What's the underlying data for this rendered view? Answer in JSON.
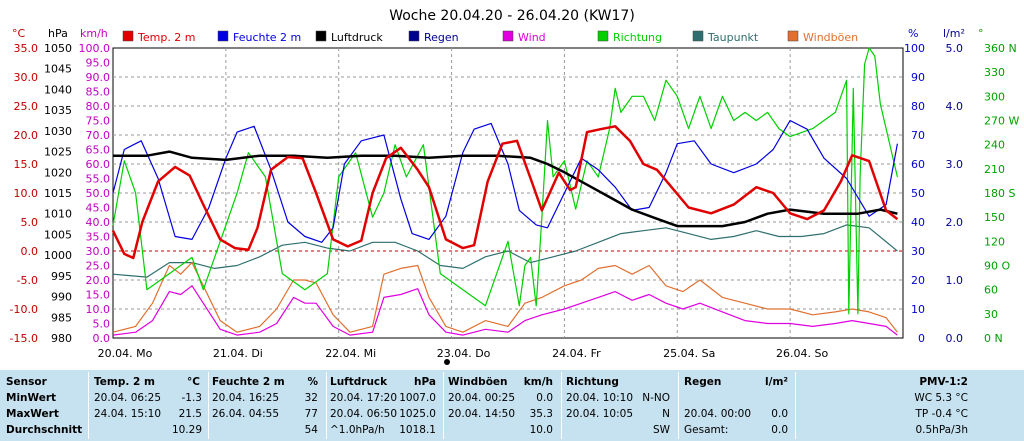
{
  "chart_data": {
    "type": "line",
    "title": "Woche 20.04.20 - 26.04.20 (KW17)",
    "legend": [
      {
        "name": "Temp. 2 m",
        "color": "#e00000"
      },
      {
        "name": "Feuchte  2 m",
        "color": "#0000e0"
      },
      {
        "name": "Luftdruck",
        "color": "#000000"
      },
      {
        "name": "Regen",
        "color": "#000090"
      },
      {
        "name": "Wind",
        "color": "#e000e0"
      },
      {
        "name": "Richtung",
        "color": "#00d000"
      },
      {
        "name": "Taupunkt",
        "color": "#2f6f6f"
      },
      {
        "name": "Windböen",
        "color": "#e07030"
      }
    ],
    "legend_position": "top",
    "grid": true,
    "x_labels": [
      "20.04.  Mo",
      "21.04.  Di",
      "22.04.  Mi",
      "23.04.  Do",
      "24.04.  Fr",
      "25.04.  Sa",
      "26.04.  So"
    ],
    "x_unit": "days since 20.04. 00:00",
    "xlim": [
      0,
      7
    ],
    "axes": {
      "temp": {
        "unit": "°C",
        "ticks": [
          "35.0",
          "30.0",
          "25.0",
          "20.0",
          "15.0",
          "10.0",
          "5.0",
          "0.0",
          "-5.0",
          "-10.0",
          "-15.0"
        ],
        "ylim": [
          -15,
          35
        ]
      },
      "pressure": {
        "unit": "hPa",
        "ticks": [
          "1050",
          "1045",
          "1040",
          "1035",
          "1030",
          "1025",
          "1020",
          "1015",
          "1010",
          "1005",
          "1000",
          "995",
          "990",
          "985",
          "980"
        ],
        "ylim": [
          980,
          1050
        ]
      },
      "wind": {
        "unit": "km/h",
        "ticks": [
          "100.0",
          "95.0",
          "90.0",
          "85.0",
          "80.0",
          "75.0",
          "70.0",
          "65.0",
          "60.0",
          "55.0",
          "50.0",
          "45.0",
          "40.0",
          "35.0",
          "30.0",
          "25.0",
          "20.0",
          "15.0",
          "10.0",
          "5.0",
          "0.0"
        ],
        "ylim": [
          0,
          100
        ]
      },
      "humidity": {
        "unit": "%",
        "ticks": [
          "100",
          "90",
          "80",
          "70",
          "60",
          "50",
          "40",
          "30",
          "20",
          "10",
          "0"
        ],
        "ylim": [
          0,
          100
        ]
      },
      "rain": {
        "unit": "l/m²",
        "ticks": [
          "5.0",
          "4.0",
          "3.0",
          "2.0",
          "1.0",
          "0.0"
        ],
        "ylim": [
          0,
          5
        ]
      },
      "direction": {
        "unit": "°",
        "ticks": [
          "360 N",
          "330",
          "300",
          "270 W",
          "240",
          "210",
          "180 S",
          "150",
          "120",
          "90 O",
          "60",
          "30",
          "0 N"
        ],
        "ylim": [
          0,
          360
        ]
      }
    },
    "series": [
      {
        "name": "Temp. 2 m",
        "axis": "temp",
        "color": "#e00000",
        "x": [
          0,
          0.1,
          0.18,
          0.26,
          0.4,
          0.55,
          0.68,
          0.8,
          0.95,
          1.08,
          1.2,
          1.28,
          1.4,
          1.55,
          1.68,
          1.8,
          1.95,
          2.08,
          2.2,
          2.3,
          2.42,
          2.55,
          2.7,
          2.8,
          2.95,
          3.1,
          3.2,
          3.32,
          3.45,
          3.58,
          3.7,
          3.8,
          3.95,
          4.05,
          4.1,
          4.2,
          4.32,
          4.45,
          4.58,
          4.7,
          4.82,
          4.95,
          5.1,
          5.3,
          5.5,
          5.7,
          5.85,
          6.0,
          6.15,
          6.3,
          6.45,
          6.55,
          6.7,
          6.85,
          6.95
        ],
        "y": [
          3.5,
          -0.5,
          -1.2,
          5,
          12,
          14.5,
          13,
          8,
          2,
          0.5,
          0.2,
          4,
          14,
          16.2,
          16,
          10,
          2,
          0.8,
          1.8,
          10,
          16,
          17.8,
          14,
          11,
          2,
          0.5,
          1,
          12,
          18.5,
          19,
          12.5,
          7,
          13.5,
          10.5,
          11,
          20.5,
          21,
          21.5,
          19,
          15,
          14,
          11,
          7.5,
          6.5,
          8,
          11,
          10,
          6.5,
          5.5,
          7,
          12,
          16.5,
          15.5,
          7,
          5.5
        ]
      },
      {
        "name": "Feuchte  2 m",
        "axis": "humidity",
        "color": "#0000e0",
        "x": [
          0,
          0.1,
          0.25,
          0.4,
          0.55,
          0.7,
          0.85,
          1.0,
          1.1,
          1.25,
          1.4,
          1.55,
          1.7,
          1.85,
          1.95,
          2.05,
          2.2,
          2.4,
          2.55,
          2.65,
          2.8,
          2.95,
          3.1,
          3.2,
          3.35,
          3.5,
          3.6,
          3.75,
          3.85,
          4.0,
          4.15,
          4.3,
          4.45,
          4.6,
          4.75,
          4.9,
          5.0,
          5.15,
          5.3,
          5.5,
          5.7,
          5.85,
          6.0,
          6.15,
          6.3,
          6.5,
          6.7,
          6.85,
          6.95
        ],
        "y": [
          50,
          65,
          68,
          55,
          35,
          34,
          45,
          62,
          71,
          73,
          58,
          40,
          35,
          33,
          38,
          60,
          68,
          70,
          48,
          36,
          34,
          42,
          64,
          72,
          74,
          60,
          44,
          39,
          38,
          50,
          62,
          58,
          52,
          44,
          45,
          57,
          67,
          68,
          60,
          57,
          60,
          65,
          75,
          72,
          62,
          55,
          42,
          46,
          67
        ]
      },
      {
        "name": "Luftdruck",
        "axis": "pressure",
        "color": "#000000",
        "x": [
          0,
          0.3,
          0.5,
          0.7,
          1.0,
          1.3,
          1.6,
          1.9,
          2.2,
          2.5,
          2.8,
          3.1,
          3.4,
          3.7,
          3.85,
          4.0,
          4.2,
          4.4,
          4.6,
          4.8,
          5.0,
          5.2,
          5.4,
          5.6,
          5.8,
          6.0,
          6.3,
          6.6,
          6.8,
          6.95
        ],
        "y": [
          1024,
          1024,
          1025,
          1023.5,
          1023,
          1024,
          1024,
          1023.5,
          1024,
          1024,
          1023.5,
          1024,
          1024,
          1023.5,
          1022,
          1020,
          1017,
          1014,
          1011,
          1009,
          1007,
          1007,
          1007,
          1008,
          1010,
          1011,
          1010,
          1010,
          1011,
          1010
        ]
      },
      {
        "name": "Richtung",
        "axis": "direction",
        "color": "#00d000",
        "x": [
          0,
          0.1,
          0.2,
          0.3,
          0.5,
          0.7,
          0.8,
          0.9,
          1.0,
          1.1,
          1.2,
          1.35,
          1.5,
          1.7,
          1.9,
          2.0,
          2.15,
          2.3,
          2.4,
          2.5,
          2.6,
          2.75,
          2.9,
          3.1,
          3.3,
          3.5,
          3.6,
          3.65,
          3.7,
          3.75,
          3.8,
          3.85,
          3.9,
          4.0,
          4.1,
          4.2,
          4.3,
          4.4,
          4.45,
          4.5,
          4.6,
          4.7,
          4.8,
          4.9,
          5.0,
          5.1,
          5.2,
          5.3,
          5.4,
          5.5,
          5.6,
          5.7,
          5.8,
          5.9,
          6.0,
          6.2,
          6.4,
          6.5,
          6.52,
          6.56,
          6.6,
          6.62,
          6.66,
          6.7,
          6.75,
          6.8,
          6.85,
          6.9,
          6.95
        ],
        "y": [
          140,
          220,
          180,
          60,
          80,
          100,
          60,
          100,
          140,
          180,
          230,
          200,
          80,
          60,
          80,
          200,
          230,
          150,
          180,
          240,
          200,
          240,
          80,
          60,
          40,
          120,
          40,
          90,
          100,
          40,
          150,
          270,
          200,
          220,
          160,
          220,
          200,
          260,
          310,
          280,
          300,
          300,
          270,
          320,
          300,
          260,
          300,
          260,
          300,
          270,
          280,
          270,
          280,
          260,
          250,
          260,
          280,
          320,
          30,
          310,
          30,
          200,
          340,
          360,
          350,
          290,
          260,
          230,
          200
        ]
      },
      {
        "name": "Taupunkt",
        "axis": "temp",
        "color": "#2f6f6f",
        "x": [
          0,
          0.3,
          0.5,
          0.7,
          0.9,
          1.1,
          1.3,
          1.5,
          1.7,
          1.9,
          2.1,
          2.3,
          2.5,
          2.7,
          2.9,
          3.1,
          3.3,
          3.5,
          3.7,
          3.9,
          4.1,
          4.3,
          4.5,
          4.7,
          4.9,
          5.1,
          5.3,
          5.5,
          5.7,
          5.9,
          6.1,
          6.3,
          6.5,
          6.7,
          6.95
        ],
        "y": [
          -4,
          -4.5,
          -2,
          -2,
          -3,
          -2.5,
          -1,
          1,
          1.5,
          0.5,
          0,
          1.5,
          1.5,
          0,
          -2.5,
          -3,
          -1,
          0,
          -2,
          -1,
          0,
          1.5,
          3,
          3.5,
          4,
          3,
          2,
          2.5,
          3.5,
          2.5,
          2.5,
          3,
          4.5,
          4,
          0
        ]
      },
      {
        "name": "Wind",
        "axis": "wind",
        "color": "#e000e0",
        "x": [
          0,
          0.2,
          0.35,
          0.5,
          0.6,
          0.7,
          0.8,
          0.95,
          1.1,
          1.3,
          1.45,
          1.6,
          1.7,
          1.8,
          1.95,
          2.1,
          2.3,
          2.4,
          2.55,
          2.7,
          2.8,
          2.95,
          3.1,
          3.3,
          3.5,
          3.65,
          3.8,
          4.0,
          4.15,
          4.3,
          4.45,
          4.6,
          4.75,
          4.9,
          5.05,
          5.2,
          5.4,
          5.6,
          5.8,
          6.0,
          6.2,
          6.4,
          6.55,
          6.7,
          6.85,
          6.95
        ],
        "y": [
          1,
          2,
          6,
          16,
          15,
          18,
          12,
          3,
          1,
          2,
          5,
          14,
          12,
          12,
          4,
          1,
          2,
          14,
          15,
          17,
          8,
          2,
          1,
          3,
          2,
          6,
          8,
          10,
          12,
          14,
          16,
          13,
          15,
          12,
          10,
          12,
          9,
          6,
          5,
          5,
          4,
          5,
          6,
          5,
          4,
          1
        ]
      },
      {
        "name": "Windböen",
        "axis": "wind",
        "color": "#e07030",
        "x": [
          0,
          0.2,
          0.35,
          0.5,
          0.6,
          0.7,
          0.8,
          0.95,
          1.1,
          1.3,
          1.45,
          1.6,
          1.7,
          1.8,
          1.95,
          2.1,
          2.3,
          2.4,
          2.55,
          2.7,
          2.8,
          2.95,
          3.1,
          3.3,
          3.5,
          3.65,
          3.8,
          4.0,
          4.15,
          4.3,
          4.45,
          4.6,
          4.75,
          4.9,
          5.05,
          5.2,
          5.4,
          5.6,
          5.8,
          6.0,
          6.2,
          6.4,
          6.55,
          6.7,
          6.85,
          6.95
        ],
        "y": [
          2,
          4,
          12,
          25,
          22,
          26,
          18,
          6,
          2,
          4,
          10,
          20,
          20,
          19,
          8,
          2,
          4,
          22,
          24,
          25,
          14,
          4,
          2,
          6,
          4,
          12,
          14,
          18,
          20,
          24,
          25,
          22,
          25,
          18,
          16,
          20,
          14,
          12,
          10,
          10,
          8,
          9,
          10,
          9,
          7,
          2
        ]
      }
    ],
    "summary": {
      "rows_label": [
        "Sensor",
        "MinWert",
        "MaxWert",
        "Durchschnitt"
      ],
      "temp": {
        "header": "Temp. 2 m",
        "unit": "°C",
        "min_time": "20.04.  06:25",
        "min": "-1.3",
        "max_time": "24.04.  15:10",
        "max": "21.5",
        "avg": "10.29"
      },
      "humidity": {
        "header": "Feuchte  2 m",
        "unit": "%",
        "min_time": "20.04.  16:25",
        "min": "32",
        "max_time": "26.04.  04:55",
        "max": "77",
        "avg": "54"
      },
      "pressure": {
        "header": "Luftdruck",
        "unit": "hPa",
        "min_time": "20.04.  17:20",
        "min": "1007.0",
        "max_time": "20.04.  06:50",
        "max": "1025.0",
        "avg_label": "^1.0hPa/h",
        "avg": "1018.1"
      },
      "gust": {
        "header": "Windböen",
        "unit": "km/h",
        "min_time": "20.04.  00:25",
        "min": "0.0",
        "max_time": "20.04.  14:50",
        "max": "35.3",
        "avg": "10.0"
      },
      "direction": {
        "header": "Richtung",
        "min_time": "20.04.  10:10",
        "min": "N-NO",
        "max_time": "20.04.  10:05",
        "max": "N",
        "avg": "SW"
      },
      "rain": {
        "header": "Regen",
        "unit": "l/m²",
        "max_time": "20.04.  00:00",
        "max": "0.0",
        "avg_label": "Gesamt:",
        "avg": "0.0"
      },
      "pmv": {
        "header": "PMV-1:2",
        "line1": "WC 5.3 °C",
        "line2": "TP -0.4 °C",
        "line3": "0.5hPa/3h"
      }
    }
  }
}
